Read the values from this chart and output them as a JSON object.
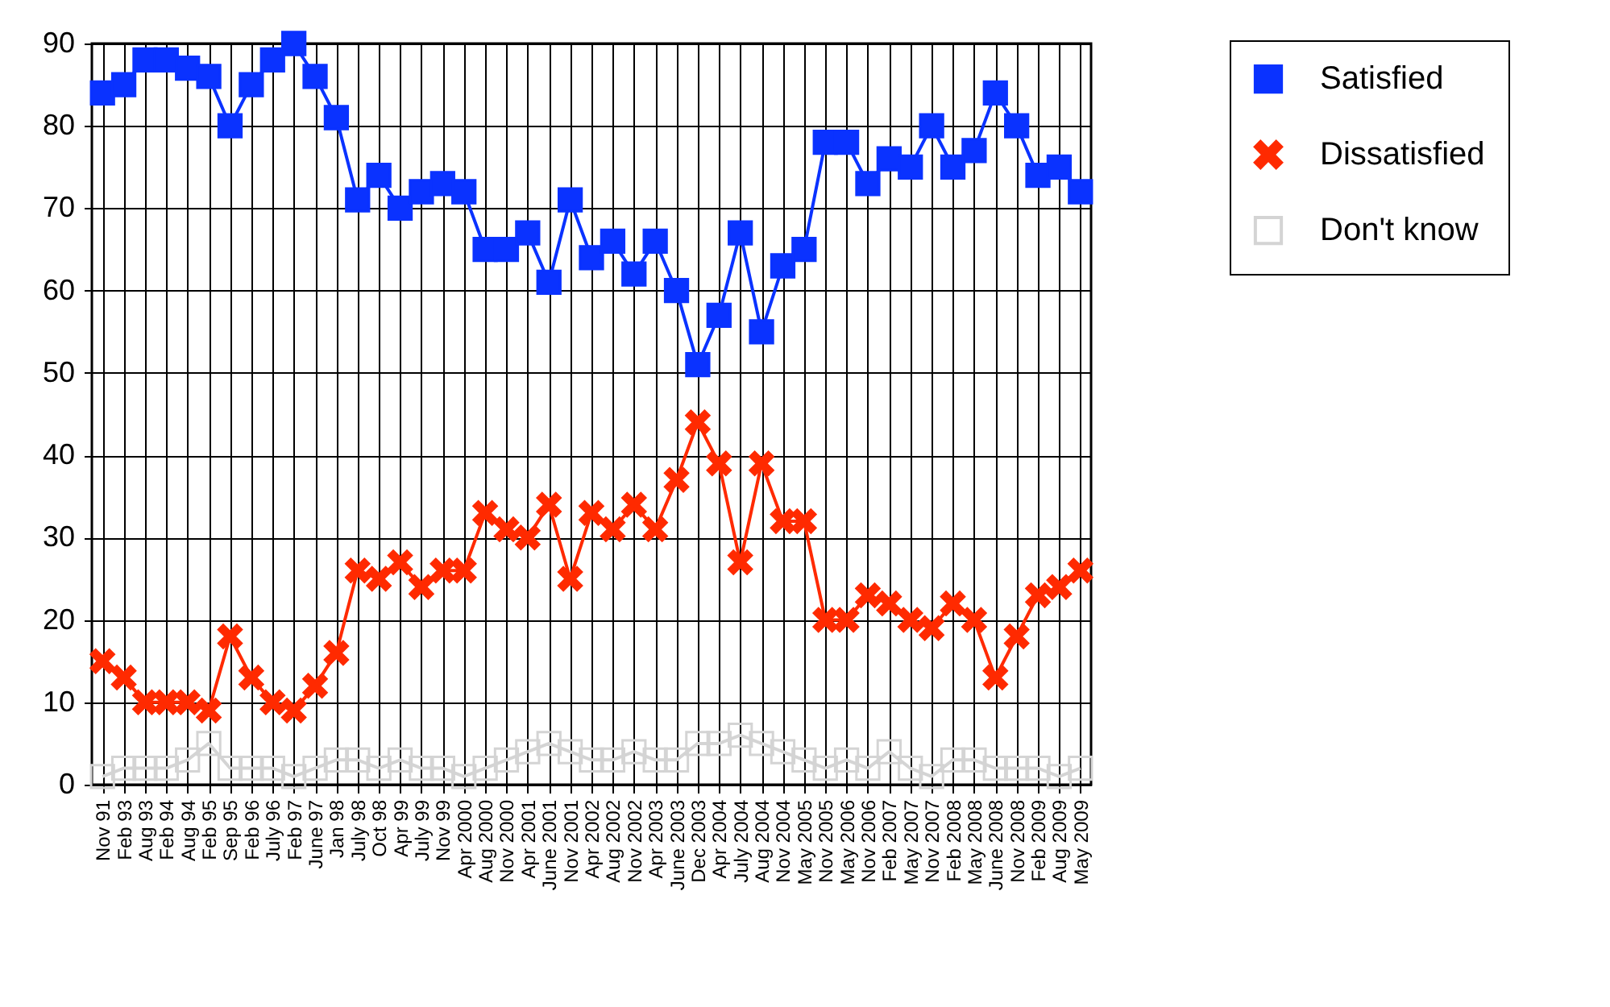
{
  "chart_data": {
    "type": "line",
    "categories": [
      "Nov 91",
      "Feb 93",
      "Aug 93",
      "Feb 94",
      "Aug 94",
      "Feb 95",
      "Sep 95",
      "Feb 96",
      "July 96",
      "Feb 97",
      "June 97",
      "Jan 98",
      "July 98",
      "Oct 98",
      "Apr 99",
      "July 99",
      "Nov 99",
      "Apr 2000",
      "Aug 2000",
      "Nov 2000",
      "Apr 2001",
      "June 2001",
      "Nov 2001",
      "Apr 2002",
      "Aug 2002",
      "Nov 2002",
      "Apr 2003",
      "June 2003",
      "Dec 2003",
      "Apr 2004",
      "July 2004",
      "Aug 2004",
      "Nov 2004",
      "May 2005",
      "Nov 2005",
      "May 2006",
      "Nov 2006",
      "Feb 2007",
      "May 2007",
      "Nov 2007",
      "Feb 2008",
      "May 2008",
      "June 2008",
      "Nov 2008",
      "Feb 2009",
      "Aug 2009",
      "May 2009"
    ],
    "series": [
      {
        "name": "Satisfied",
        "color": "#0a32ff",
        "marker": "square",
        "values": [
          84,
          85,
          88,
          88,
          87,
          86,
          80,
          85,
          88,
          90,
          86,
          81,
          71,
          74,
          70,
          72,
          73,
          72,
          65,
          65,
          67,
          61,
          71,
          64,
          66,
          62,
          66,
          60,
          51,
          57,
          67,
          55,
          63,
          65,
          78,
          78,
          73,
          76,
          75,
          80,
          75,
          77,
          84,
          80,
          74,
          75,
          72
        ]
      },
      {
        "name": "Dissatisfied",
        "color": "#ff2a00",
        "marker": "cross",
        "values": [
          15,
          13,
          10,
          10,
          10,
          9,
          18,
          13,
          10,
          9,
          12,
          16,
          26,
          25,
          27,
          24,
          26,
          26,
          33,
          31,
          30,
          34,
          25,
          33,
          31,
          34,
          31,
          37,
          44,
          39,
          27,
          39,
          32,
          32,
          20,
          20,
          23,
          22,
          20,
          19,
          22,
          20,
          13,
          18,
          23,
          24,
          26
        ]
      },
      {
        "name": "Don't know",
        "color": "#d4d4d4",
        "marker": "square",
        "values": [
          1,
          2,
          2,
          2,
          3,
          5,
          2,
          2,
          2,
          1,
          2,
          3,
          3,
          2,
          3,
          2,
          2,
          1,
          2,
          3,
          4,
          5,
          4,
          3,
          3,
          4,
          3,
          3,
          5,
          5,
          6,
          5,
          4,
          3,
          2,
          3,
          2,
          4,
          2,
          1,
          3,
          3,
          2,
          2,
          2,
          1,
          2
        ]
      }
    ],
    "ylim": [
      0,
      90
    ],
    "yticks": [
      0,
      10,
      20,
      30,
      40,
      50,
      60,
      70,
      80,
      90
    ],
    "grid": true,
    "legend": "top right",
    "line_style": "solid"
  }
}
